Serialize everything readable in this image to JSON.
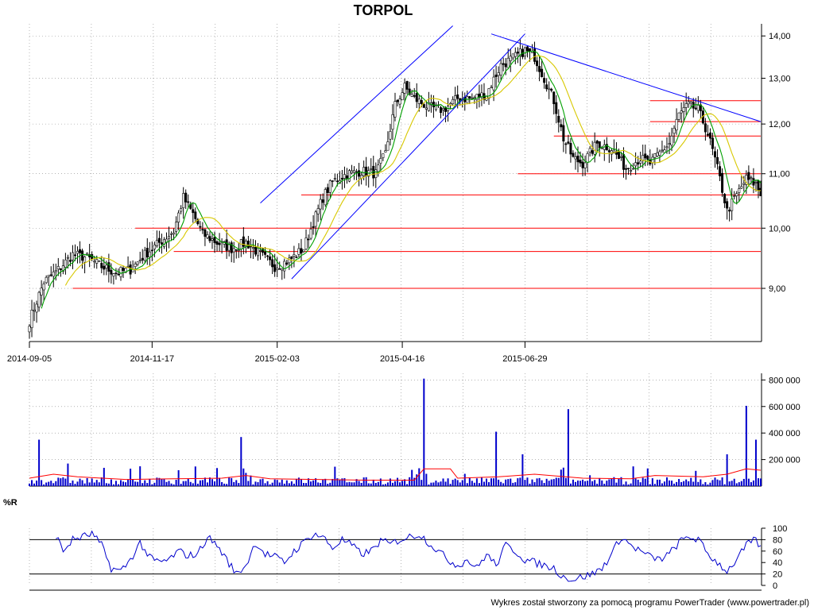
{
  "chart_data": [
    {
      "type": "candlestick",
      "title": "TORPOL",
      "x_tick_labels": [
        "2014-09-05",
        "2014-11-17",
        "2015-02-03",
        "2015-04-16",
        "2015-06-29"
      ],
      "y_tick_labels": [
        "9,00",
        "10,00",
        "11,00",
        "12,00",
        "13,00",
        "14,00"
      ],
      "y_ticks": [
        9,
        10,
        11,
        12,
        13,
        14
      ],
      "ylim": [
        8.2,
        14.3
      ],
      "scale": "log",
      "grid": true,
      "colors": {
        "up": "#008000",
        "down": "#000000",
        "ma_short": "#00a000",
        "ma_long": "#d8c800",
        "trend": "#0000ff",
        "level": "#ff0000"
      },
      "close_path": [
        [
          0,
          8.5
        ],
        [
          6,
          9.1
        ],
        [
          12,
          9.3
        ],
        [
          18,
          9.55
        ],
        [
          24,
          9.5
        ],
        [
          30,
          9.35
        ],
        [
          36,
          9.25
        ],
        [
          42,
          9.3
        ],
        [
          48,
          9.55
        ],
        [
          54,
          9.75
        ],
        [
          60,
          9.95
        ],
        [
          64,
          10.55
        ],
        [
          68,
          10.25
        ],
        [
          72,
          9.9
        ],
        [
          78,
          9.75
        ],
        [
          84,
          9.65
        ],
        [
          90,
          9.75
        ],
        [
          96,
          9.55
        ],
        [
          102,
          9.35
        ],
        [
          108,
          9.45
        ],
        [
          114,
          9.65
        ],
        [
          118,
          10.1
        ],
        [
          122,
          10.55
        ],
        [
          126,
          10.85
        ],
        [
          132,
          11.0
        ],
        [
          138,
          11.05
        ],
        [
          144,
          11.0
        ],
        [
          148,
          11.4
        ],
        [
          152,
          12.4
        ],
        [
          156,
          12.8
        ],
        [
          160,
          12.55
        ],
        [
          166,
          12.35
        ],
        [
          172,
          12.3
        ],
        [
          178,
          12.55
        ],
        [
          184,
          12.55
        ],
        [
          190,
          12.65
        ],
        [
          196,
          13.3
        ],
        [
          202,
          13.5
        ],
        [
          206,
          13.65
        ],
        [
          210,
          13.5
        ],
        [
          214,
          13.0
        ],
        [
          218,
          12.5
        ],
        [
          222,
          11.7
        ],
        [
          226,
          11.3
        ],
        [
          230,
          11.2
        ],
        [
          236,
          11.6
        ],
        [
          242,
          11.5
        ],
        [
          248,
          11.1
        ],
        [
          254,
          11.3
        ],
        [
          258,
          11.2
        ],
        [
          262,
          11.4
        ],
        [
          266,
          11.6
        ],
        [
          270,
          12.2
        ],
        [
          274,
          12.4
        ],
        [
          278,
          12.3
        ],
        [
          282,
          11.8
        ],
        [
          286,
          11.1
        ],
        [
          290,
          10.3
        ],
        [
          294,
          10.6
        ],
        [
          298,
          10.9
        ],
        [
          302,
          10.8
        ],
        [
          304,
          10.6
        ]
      ],
      "trend_lines": [
        [
          [
            109,
            9.15
          ],
          [
            206,
            14.05
          ]
        ],
        [
          [
            96,
            10.45
          ],
          [
            176,
            14.25
          ]
        ],
        [
          [
            192,
            14.05
          ],
          [
            304,
            12.05
          ]
        ]
      ],
      "horizontal_levels": [
        {
          "value": 9.0,
          "from": 18,
          "to": 304
        },
        {
          "value": 9.6,
          "from": 60,
          "to": 304
        },
        {
          "value": 10.0,
          "from": 44,
          "to": 304
        },
        {
          "value": 10.6,
          "from": 113,
          "to": 304
        },
        {
          "value": 11.0,
          "from": 203,
          "to": 304
        },
        {
          "value": 11.75,
          "from": 218,
          "to": 304
        },
        {
          "value": 12.05,
          "from": 258,
          "to": 304
        },
        {
          "value": 12.5,
          "from": 258,
          "to": 304
        }
      ]
    },
    {
      "type": "bar",
      "name": "volume",
      "y_tick_labels": [
        "200 000",
        "400 000",
        "600 000",
        "800 000"
      ],
      "y_ticks": [
        200000,
        400000,
        600000,
        800000
      ],
      "ylim": [
        0,
        850000
      ],
      "colors": {
        "bar": "#0000cc",
        "ma": "#ff0000"
      },
      "peaks": [
        {
          "x": 4,
          "value": 350000
        },
        {
          "x": 16,
          "value": 170000
        },
        {
          "x": 88,
          "value": 370000
        },
        {
          "x": 164,
          "value": 810000
        },
        {
          "x": 194,
          "value": 410000
        },
        {
          "x": 224,
          "value": 580000
        },
        {
          "x": 298,
          "value": 605000
        },
        {
          "x": 302,
          "value": 350000
        },
        {
          "x": 290,
          "value": 240000
        },
        {
          "x": 62,
          "value": 120000
        },
        {
          "x": 205,
          "value": 240000
        }
      ],
      "base_level": 40000,
      "ma_path": [
        [
          0,
          60000
        ],
        [
          10,
          90000
        ],
        [
          20,
          70000
        ],
        [
          40,
          50000
        ],
        [
          60,
          55000
        ],
        [
          80,
          60000
        ],
        [
          90,
          80000
        ],
        [
          100,
          55000
        ],
        [
          120,
          50000
        ],
        [
          140,
          45000
        ],
        [
          160,
          45000
        ],
        [
          164,
          130000
        ],
        [
          175,
          130000
        ],
        [
          178,
          60000
        ],
        [
          195,
          70000
        ],
        [
          210,
          90000
        ],
        [
          230,
          60000
        ],
        [
          250,
          55000
        ],
        [
          260,
          80000
        ],
        [
          280,
          70000
        ],
        [
          290,
          90000
        ],
        [
          298,
          130000
        ],
        [
          304,
          120000
        ]
      ]
    },
    {
      "type": "line",
      "name": "%R",
      "label": "%R",
      "y_tick_labels": [
        "0",
        "20",
        "40",
        "60",
        "80",
        "100"
      ],
      "y_ticks": [
        0,
        20,
        40,
        60,
        80,
        100
      ],
      "ylim": [
        0,
        100
      ],
      "reference_lines": [
        20,
        80
      ],
      "colors": {
        "line": "#0000cc",
        "ref": "#000000"
      },
      "path": [
        [
          11,
          88
        ],
        [
          14,
          60
        ],
        [
          18,
          80
        ],
        [
          22,
          85
        ],
        [
          26,
          90
        ],
        [
          30,
          70
        ],
        [
          34,
          30
        ],
        [
          38,
          25
        ],
        [
          42,
          45
        ],
        [
          46,
          75
        ],
        [
          50,
          48
        ],
        [
          54,
          40
        ],
        [
          58,
          45
        ],
        [
          62,
          60
        ],
        [
          66,
          52
        ],
        [
          70,
          55
        ],
        [
          74,
          85
        ],
        [
          78,
          70
        ],
        [
          82,
          45
        ],
        [
          86,
          20
        ],
        [
          90,
          35
        ],
        [
          94,
          75
        ],
        [
          98,
          55
        ],
        [
          102,
          50
        ],
        [
          106,
          40
        ],
        [
          110,
          60
        ],
        [
          114,
          75
        ],
        [
          118,
          90
        ],
        [
          122,
          85
        ],
        [
          126,
          65
        ],
        [
          130,
          80
        ],
        [
          134,
          70
        ],
        [
          138,
          55
        ],
        [
          142,
          60
        ],
        [
          146,
          78
        ],
        [
          150,
          72
        ],
        [
          154,
          80
        ],
        [
          158,
          85
        ],
        [
          162,
          90
        ],
        [
          166,
          75
        ],
        [
          170,
          60
        ],
        [
          174,
          45
        ],
        [
          178,
          35
        ],
        [
          182,
          45
        ],
        [
          186,
          30
        ],
        [
          190,
          55
        ],
        [
          194,
          35
        ],
        [
          198,
          70
        ],
        [
          202,
          60
        ],
        [
          206,
          45
        ],
        [
          210,
          40
        ],
        [
          214,
          35
        ],
        [
          218,
          30
        ],
        [
          222,
          15
        ],
        [
          226,
          10
        ],
        [
          230,
          15
        ],
        [
          234,
          20
        ],
        [
          238,
          30
        ],
        [
          242,
          55
        ],
        [
          246,
          85
        ],
        [
          250,
          70
        ],
        [
          254,
          60
        ],
        [
          258,
          50
        ],
        [
          262,
          45
        ],
        [
          266,
          55
        ],
        [
          270,
          75
        ],
        [
          274,
          85
        ],
        [
          278,
          80
        ],
        [
          282,
          55
        ],
        [
          286,
          40
        ],
        [
          290,
          25
        ],
        [
          294,
          45
        ],
        [
          298,
          70
        ],
        [
          302,
          80
        ],
        [
          304,
          65
        ]
      ]
    }
  ],
  "footer": "Wykres został stworzony za pomocą programu PowerTrader (www.powertrader.pl)"
}
